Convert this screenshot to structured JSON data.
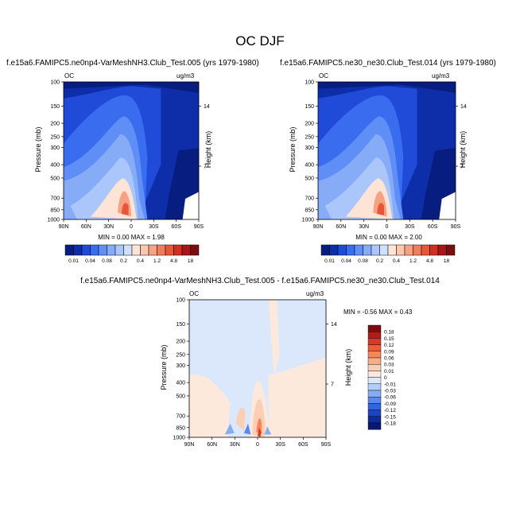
{
  "figure": {
    "title": "OC DJF"
  },
  "chart_data": [
    {
      "type": "heatmap",
      "title": "f.e15a6.FAMIPC5.ne0np4-VarMeshNH3.Club_Test.005 (yrs 1979-1980)",
      "corner_left": "OC",
      "corner_right": "ug/m3",
      "xlabel": "",
      "ylabel": "Pressure (mb)",
      "ylabel_right": "Height (km)",
      "x_ticks": [
        "90N",
        "60N",
        "30N",
        "0",
        "30S",
        "60S",
        "90S"
      ],
      "y_ticks": [
        "100",
        "150",
        "200",
        "250",
        "300",
        "400",
        "500",
        "700",
        "850",
        "1000"
      ],
      "y_right_ticks": [
        "14",
        "7"
      ],
      "stats": "MIN =  0.00  MAX =  1.98",
      "colorbar_labels": [
        "0.01",
        "0.04",
        "0.08",
        "0.2",
        "0.4",
        "1.2",
        "4.8",
        "18"
      ],
      "colorbar_colors": [
        "#081d80",
        "#0d2ea8",
        "#1f4bd8",
        "#3a6cf0",
        "#5f8ef7",
        "#86acf8",
        "#aac6fa",
        "#cfe0fc",
        "#fde4d6",
        "#fbc7ad",
        "#f7a283",
        "#f27d5d",
        "#e8563a",
        "#cf3021",
        "#a8161a",
        "#7a0d0d"
      ]
    },
    {
      "type": "heatmap",
      "title": "f.e15a6.FAMIPC5.ne30_ne30.Club_Test.014 (yrs 1979-1980)",
      "corner_left": "OC",
      "corner_right": "ug/m3",
      "ylabel": "Pressure (mb)",
      "ylabel_right": "Height (km)",
      "x_ticks": [
        "90N",
        "60N",
        "30N",
        "0",
        "30S",
        "60S",
        "90S"
      ],
      "y_ticks": [
        "100",
        "150",
        "200",
        "250",
        "300",
        "400",
        "500",
        "700",
        "850",
        "1000"
      ],
      "y_right_ticks": [
        "14",
        "7"
      ],
      "stats": "MIN =  0.00  MAX =  2.00",
      "colorbar_labels": [
        "0.01",
        "0.04",
        "0.08",
        "0.2",
        "0.4",
        "1.2",
        "4.8",
        "18"
      ]
    },
    {
      "type": "heatmap",
      "title": "f.e15a6.FAMIPC5.ne0np4-VarMeshNH3.Club_Test.005 - f.e15a6.FAMIPC5.ne30_ne30.Club_Test.014",
      "corner_left": "OC",
      "corner_right": "ug/m3",
      "ylabel": "Pressure (mb)",
      "ylabel_right": "Height (km)",
      "x_ticks": [
        "90N",
        "60N",
        "30N",
        "0",
        "30S",
        "60S",
        "90S"
      ],
      "y_ticks": [
        "100",
        "150",
        "200",
        "250",
        "300",
        "400",
        "500",
        "700",
        "850",
        "1000"
      ],
      "y_right_ticks": [
        "14",
        "7"
      ],
      "stats": "MIN = -0.56  MAX =  0.43",
      "colorbar_labels": [
        "0.18",
        "0.15",
        "0.12",
        "0.09",
        "0.06",
        "0.03",
        "0.01",
        "0",
        "-0.01",
        "-0.03",
        "-0.06",
        "-0.09",
        "-0.12",
        "-0.15",
        "-0.18"
      ],
      "colorbar_colors": [
        "#7a0d0d",
        "#b01e1a",
        "#d83a22",
        "#ef5e36",
        "#f7865a",
        "#f9ab85",
        "#fbcfb6",
        "#fde9dc",
        "#dbe8fb",
        "#b2cdf8",
        "#86acf5",
        "#5a88ee",
        "#3463e0",
        "#1e43c2",
        "#0f2b99",
        "#081a70"
      ]
    }
  ]
}
